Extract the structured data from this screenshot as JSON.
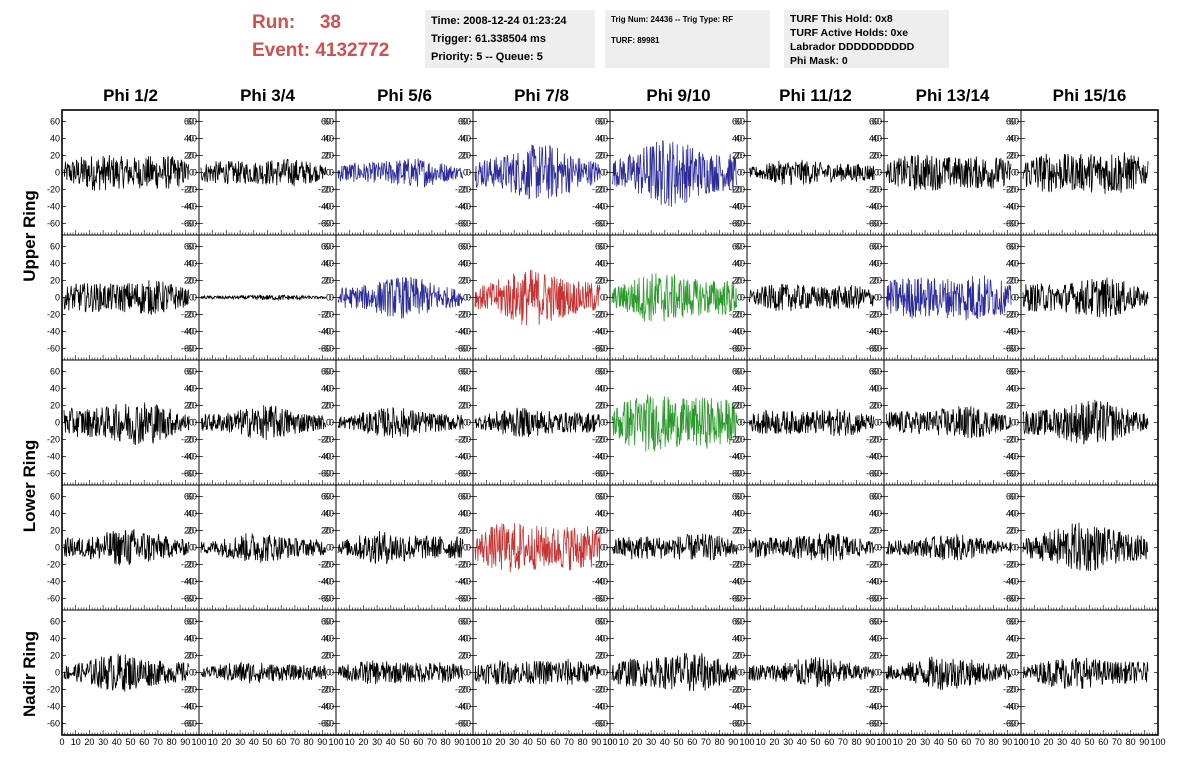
{
  "header": {
    "run_label": "Run:",
    "run_value": "38",
    "event_label": "Event:",
    "event_value": "4132772"
  },
  "time_box": {
    "time": "Time: 2008-12-24 01:23:24",
    "trigger": "Trigger: 61.338504 ms",
    "priority": "Priority: 5 -- Queue: 5"
  },
  "trig_box": {
    "trig_line": "Trig Num: 24436 -- Trig Type: RF",
    "turf": "TURF: 89981"
  },
  "turf_box": {
    "this_hold": "TURF This Hold: 0x8",
    "active_holds": "TURF Active Holds: 0xe",
    "labrador": "Labrador DDDDDDDDDD",
    "phi_mask": "Phi Mask: 0"
  },
  "colors": {
    "trace_default": "#000000",
    "trace_blue": "#2b2b9a",
    "trace_red": "#c83232",
    "trace_green": "#2a9a2a",
    "title_red": "#d0504f",
    "info_bg": "#eeeeee"
  },
  "chart_data": {
    "type": "line",
    "layout": "grid",
    "columns": [
      "Phi 1/2",
      "Phi 3/4",
      "Phi 5/6",
      "Phi 7/8",
      "Phi 9/10",
      "Phi 11/12",
      "Phi 13/14",
      "Phi 15/16"
    ],
    "ring_labels": [
      "Upper Ring",
      "Lower Ring",
      "Nadir Ring"
    ],
    "rows": 5,
    "ring_row_spans": [
      [
        0,
        1
      ],
      [
        2,
        3
      ],
      [
        4,
        4
      ]
    ],
    "xlim": [
      0,
      100
    ],
    "ylim": [
      -70,
      70
    ],
    "yticks": [
      -60,
      -40,
      -20,
      0,
      20,
      40,
      60
    ],
    "xtick_labels": [
      [
        "0",
        "10",
        "20",
        "30",
        "40",
        "50",
        "60",
        "70",
        "80",
        "90",
        "100"
      ],
      [
        "10",
        "20",
        "30",
        "40",
        "50",
        "60",
        "70",
        "80",
        "90",
        "100"
      ],
      [
        "10",
        "20",
        "30",
        "40",
        "50",
        "60",
        "70",
        "80",
        "90",
        "100"
      ],
      [
        "10",
        "20",
        "30",
        "40",
        "50",
        "60",
        "70",
        "80",
        "90",
        "100"
      ],
      [
        "0",
        "10",
        "20",
        "30",
        "40",
        "50",
        "60",
        "70",
        "80",
        "90",
        "100"
      ],
      [
        "10",
        "20",
        "30",
        "40",
        "50",
        "60",
        "70",
        "80",
        "90",
        "100"
      ],
      [
        "10",
        "20",
        "30",
        "40",
        "50",
        "60",
        "70",
        "80",
        "90",
        "100"
      ],
      [
        "0",
        "10",
        "20",
        "30",
        "40",
        "50",
        "60",
        "70",
        "80",
        "90",
        "100"
      ]
    ],
    "cells": [
      [
        {
          "color": "black",
          "amplitude": 22
        },
        {
          "color": "black",
          "amplitude": 16
        },
        {
          "color": "blue",
          "amplitude": 16
        },
        {
          "color": "blue",
          "amplitude": 30
        },
        {
          "color": "blue",
          "amplitude": 36
        },
        {
          "color": "black",
          "amplitude": 14
        },
        {
          "color": "black",
          "amplitude": 22
        },
        {
          "color": "black",
          "amplitude": 26
        }
      ],
      [
        {
          "color": "black",
          "amplitude": 20
        },
        {
          "color": "black",
          "amplitude": 3
        },
        {
          "color": "blue",
          "amplitude": 22
        },
        {
          "color": "red",
          "amplitude": 30
        },
        {
          "color": "green",
          "amplitude": 28
        },
        {
          "color": "black",
          "amplitude": 16
        },
        {
          "color": "blue",
          "amplitude": 28
        },
        {
          "color": "black",
          "amplitude": 22
        }
      ],
      [
        {
          "color": "black",
          "amplitude": 24
        },
        {
          "color": "black",
          "amplitude": 18
        },
        {
          "color": "black",
          "amplitude": 16
        },
        {
          "color": "black",
          "amplitude": 16
        },
        {
          "color": "green",
          "amplitude": 34
        },
        {
          "color": "black",
          "amplitude": 16
        },
        {
          "color": "black",
          "amplitude": 18
        },
        {
          "color": "black",
          "amplitude": 24
        }
      ],
      [
        {
          "color": "black",
          "amplitude": 20
        },
        {
          "color": "black",
          "amplitude": 16
        },
        {
          "color": "black",
          "amplitude": 18
        },
        {
          "color": "red",
          "amplitude": 30
        },
        {
          "color": "black",
          "amplitude": 16
        },
        {
          "color": "black",
          "amplitude": 16
        },
        {
          "color": "black",
          "amplitude": 14
        },
        {
          "color": "black",
          "amplitude": 26
        }
      ],
      [
        {
          "color": "black",
          "amplitude": 20
        },
        {
          "color": "black",
          "amplitude": 12
        },
        {
          "color": "black",
          "amplitude": 14
        },
        {
          "color": "black",
          "amplitude": 16
        },
        {
          "color": "black",
          "amplitude": 22
        },
        {
          "color": "black",
          "amplitude": 16
        },
        {
          "color": "black",
          "amplitude": 18
        },
        {
          "color": "black",
          "amplitude": 18
        }
      ]
    ]
  }
}
